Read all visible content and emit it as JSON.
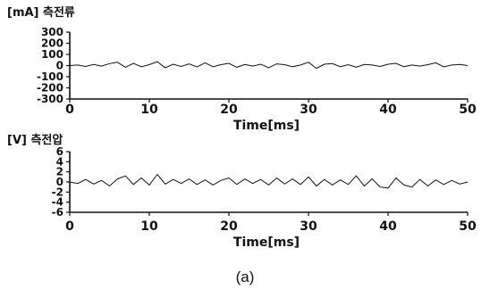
{
  "chart_data": [
    {
      "type": "line",
      "title": "[mA] 측전류",
      "xlabel": "Time[ms]",
      "ylabel": "",
      "xlim": [
        0,
        50
      ],
      "ylim": [
        -300,
        300
      ],
      "xticks": [
        "0",
        "10",
        "20",
        "30",
        "40",
        "50"
      ],
      "yticks": [
        "300",
        "200",
        "100",
        "0",
        "-100",
        "-200",
        "-300"
      ],
      "series": [
        {
          "x": [
            0,
            1,
            2,
            3,
            4,
            5,
            6,
            7,
            8,
            9,
            10,
            11,
            12,
            13,
            14,
            15,
            16,
            17,
            18,
            19,
            20,
            21,
            22,
            23,
            24,
            25,
            26,
            27,
            28,
            29,
            30,
            31,
            32,
            33,
            34,
            35,
            36,
            37,
            38,
            39,
            40,
            41,
            42,
            43,
            44,
            45,
            46,
            47,
            48,
            49,
            50
          ],
          "values": [
            0,
            5,
            -8,
            10,
            -5,
            18,
            30,
            -15,
            20,
            -10,
            8,
            35,
            -20,
            12,
            -8,
            15,
            -12,
            25,
            -10,
            8,
            20,
            -15,
            10,
            -5,
            12,
            -20,
            15,
            8,
            -10,
            5,
            30,
            -25,
            12,
            18,
            -10,
            8,
            -15,
            10,
            5,
            -8,
            12,
            20,
            -10,
            5,
            -5,
            8,
            25,
            -12,
            5,
            10,
            0
          ]
        }
      ]
    },
    {
      "type": "line",
      "title": "[V] 측전압",
      "xlabel": "Time[ms]",
      "ylabel": "",
      "xlim": [
        0,
        50
      ],
      "ylim": [
        -6,
        6
      ],
      "xticks": [
        "0",
        "10",
        "20",
        "30",
        "40",
        "50"
      ],
      "yticks": [
        "6",
        "4",
        "2",
        "0",
        "-2",
        "-4",
        "-6"
      ],
      "series": [
        {
          "x": [
            0,
            1,
            2,
            3,
            4,
            5,
            6,
            7,
            8,
            9,
            10,
            11,
            12,
            13,
            14,
            15,
            16,
            17,
            18,
            19,
            20,
            21,
            22,
            23,
            24,
            25,
            26,
            27,
            28,
            29,
            30,
            31,
            32,
            33,
            34,
            35,
            36,
            37,
            38,
            39,
            40,
            41,
            42,
            43,
            44,
            45,
            46,
            47,
            48,
            49,
            50
          ],
          "values": [
            0,
            -0.3,
            0.5,
            -0.4,
            0.3,
            -0.8,
            0.6,
            1.2,
            -0.5,
            0.8,
            -0.6,
            1.5,
            -0.4,
            0.5,
            -0.3,
            0.6,
            -0.5,
            0.4,
            -0.6,
            0.3,
            0.8,
            -0.5,
            0.6,
            -0.3,
            0.5,
            -0.6,
            0.8,
            -0.4,
            0.6,
            -0.5,
            1.0,
            -0.8,
            0.5,
            -0.6,
            0.4,
            -0.5,
            1.2,
            -0.8,
            0.6,
            -1.0,
            -1.2,
            0.8,
            -0.6,
            -1.0,
            0.5,
            -0.8,
            0.4,
            -0.5,
            0.3,
            -0.4,
            0
          ]
        }
      ]
    }
  ],
  "caption": "(a)"
}
